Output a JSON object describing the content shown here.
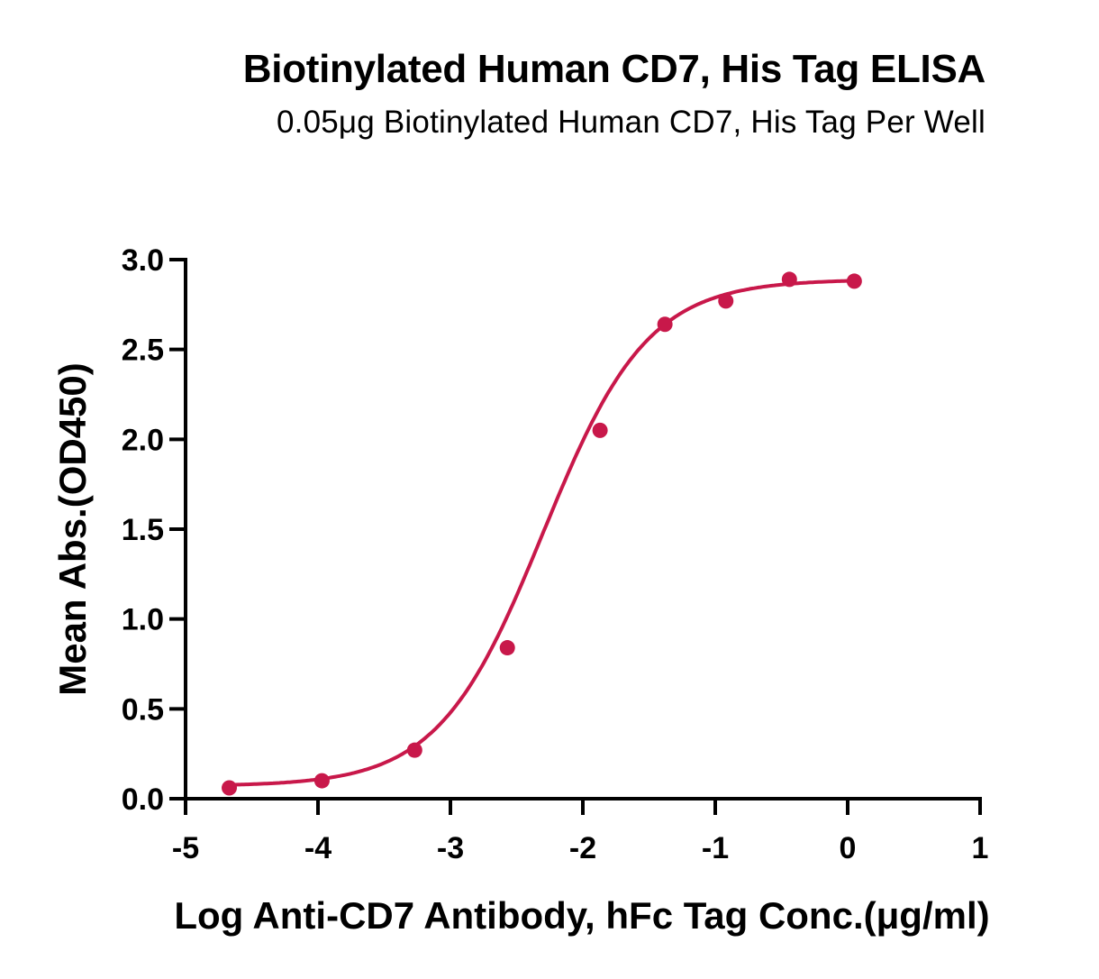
{
  "chart_data": {
    "type": "scatter",
    "title": "Biotinylated Human CD7, His Tag ELISA",
    "subtitle": "0.05μg Biotinylated Human CD7, His Tag Per Well",
    "xlabel": "Log Anti-CD7 Antibody, hFc Tag Conc.(μg/ml)",
    "ylabel": "Mean Abs.(OD450)",
    "xlim": [
      -5,
      1
    ],
    "ylim": [
      0,
      3.0
    ],
    "x_ticks": [
      -5,
      -4,
      -3,
      -2,
      -1,
      0,
      1
    ],
    "x_tick_labels": [
      "-5",
      "-4",
      "-3",
      "-2",
      "-1",
      "0",
      "1"
    ],
    "y_ticks": [
      0,
      0.5,
      1.0,
      1.5,
      2.0,
      2.5,
      3.0
    ],
    "y_tick_labels": [
      "0.0",
      "0.5",
      "1.0",
      "1.5",
      "2.0",
      "2.5",
      "3.0"
    ],
    "grid": false,
    "series": [
      {
        "color": "#c8184a",
        "x": [
          -4.67,
          -3.97,
          -3.27,
          -2.57,
          -1.87,
          -1.38,
          -0.92,
          -0.44,
          0.05
        ],
        "y": [
          0.06,
          0.1,
          0.27,
          0.84,
          2.05,
          2.64,
          2.77,
          2.89,
          2.88
        ],
        "fit": {
          "model": "4PL",
          "bottom": 0.07,
          "top": 2.89,
          "logEC50": -2.3,
          "hill": 1.1
        }
      }
    ]
  }
}
